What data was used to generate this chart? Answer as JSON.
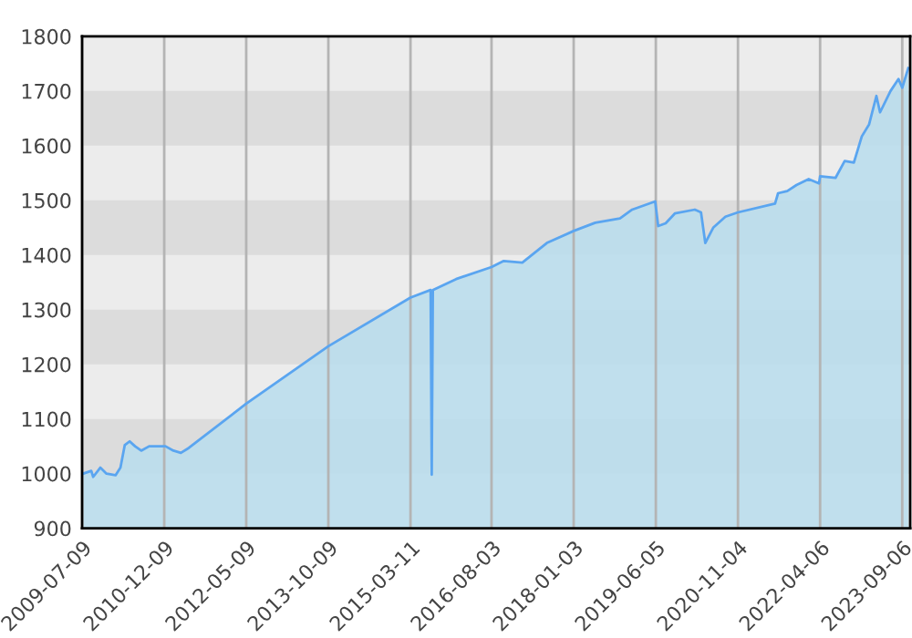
{
  "chart_data": {
    "type": "area",
    "x": [
      "2009-07-16",
      "2009-09-05",
      "2009-09-17",
      "2009-11-01",
      "2009-12-10",
      "2010-02-05",
      "2010-03-08",
      "2010-04-04",
      "2010-05-05",
      "2010-06-08",
      "2010-07-17",
      "2010-09-05",
      "2010-11-02",
      "2010-12-17",
      "2011-02-05",
      "2011-03-24",
      "2011-05-13",
      "2012-05-09",
      "2013-10-09",
      "2015-03-11",
      "2015-07-16",
      "2015-07-23",
      "2015-07-30",
      "2015-12-24",
      "2016-08-03",
      "2016-10-19",
      "2017-02-13",
      "2017-07-18",
      "2018-01-03",
      "2018-05-19",
      "2018-10-22",
      "2019-01-07",
      "2019-06-01",
      "2019-06-20",
      "2019-08-06",
      "2019-10-03",
      "2020-02-06",
      "2020-03-16",
      "2020-04-12",
      "2020-06-01",
      "2020-08-17",
      "2020-11-04",
      "2021-06-26",
      "2021-07-15",
      "2021-09-11",
      "2021-11-08",
      "2022-01-24",
      "2022-03-30",
      "2022-04-06",
      "2022-07-12",
      "2022-09-08",
      "2022-11-05",
      "2022-12-25",
      "2023-02-09",
      "2023-03-27",
      "2023-04-19",
      "2023-06-24",
      "2023-08-13",
      "2023-09-06",
      "2023-10-14"
    ],
    "series": [
      {
        "color": "#5aa5f0",
        "values": [
          1000,
          1005,
          994,
          1011,
          1000,
          997,
          1011,
          1052,
          1059,
          1050,
          1042,
          1050,
          1050,
          1050,
          1042,
          1038,
          1047,
          1128,
          1233,
          1322,
          1336,
          998,
          1336,
          1356,
          1378,
          1389,
          1386,
          1422,
          1444,
          1459,
          1467,
          1483,
          1498,
          1453,
          1458,
          1476,
          1483,
          1478,
          1422,
          1450,
          1470,
          1478,
          1494,
          1513,
          1517,
          1528,
          1539,
          1531,
          1544,
          1541,
          1572,
          1569,
          1617,
          1639,
          1691,
          1661,
          1700,
          1722,
          1706,
          1742
        ]
      }
    ],
    "xlim": [
      "2009-07-09",
      "2023-10-26"
    ],
    "xticks": [
      "2009-07-09",
      "2010-12-09",
      "2012-05-09",
      "2013-10-09",
      "2015-03-11",
      "2016-08-03",
      "2018-01-03",
      "2019-06-05",
      "2020-11-04",
      "2022-04-06",
      "2023-09-06"
    ],
    "ylim": [
      900,
      1800
    ],
    "yticks": [
      900,
      1000,
      1100,
      1200,
      1300,
      1400,
      1500,
      1600,
      1700,
      1800
    ],
    "grid": "x",
    "bands": [
      {
        "axis": "y",
        "from": 1000,
        "to": 1100,
        "color": "#dcdcdc"
      },
      {
        "axis": "y",
        "from": 1200,
        "to": 1300,
        "color": "#dcdcdc"
      },
      {
        "axis": "y",
        "from": 1400,
        "to": 1500,
        "color": "#dcdcdc"
      },
      {
        "axis": "y",
        "from": 1600,
        "to": 1700,
        "color": "#dcdcdc"
      }
    ]
  }
}
